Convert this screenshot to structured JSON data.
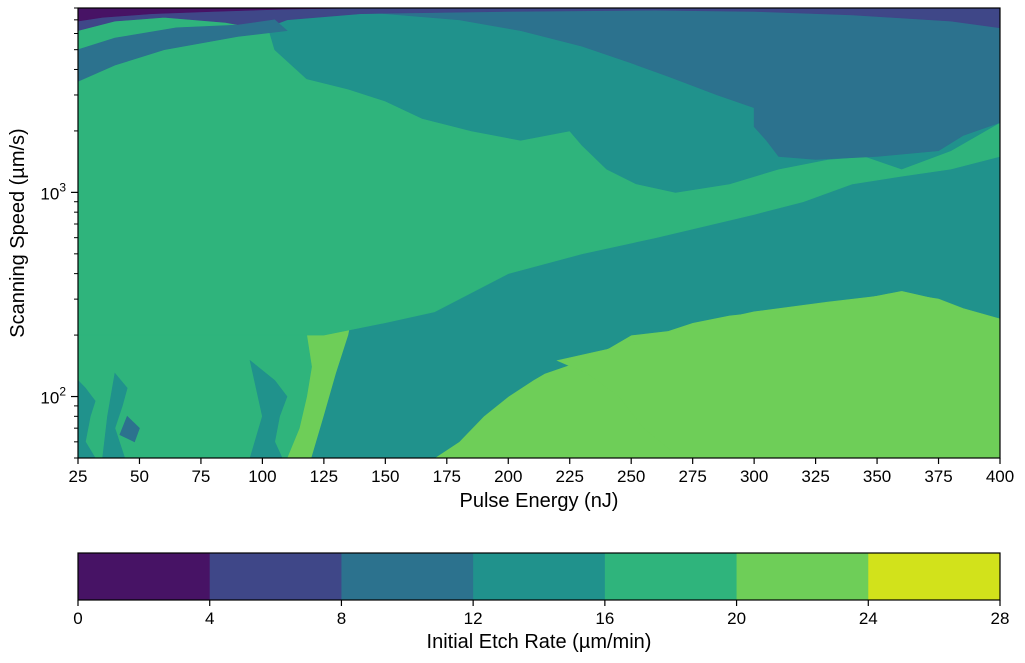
{
  "chart_data": {
    "type": "heatmap",
    "subtype": "filled-contour",
    "title": "",
    "xlabel": "Pulse Energy (nJ)",
    "ylabel": "Scanning Speed (µm/s)",
    "x_ticks": [
      "25",
      "50",
      "75",
      "100",
      "125",
      "150",
      "175",
      "200",
      "225",
      "250",
      "275",
      "300",
      "325",
      "350",
      "375",
      "400"
    ],
    "x_tick_values": [
      25,
      50,
      75,
      100,
      125,
      150,
      175,
      200,
      225,
      250,
      275,
      300,
      325,
      350,
      375,
      400
    ],
    "xlim": [
      25,
      400
    ],
    "y_scale": "log",
    "ylim": [
      50,
      8000
    ],
    "y_major_ticks": [
      {
        "value": 100,
        "base": "10",
        "exp": "2"
      },
      {
        "value": 1000,
        "base": "10",
        "exp": "3"
      }
    ],
    "colorbar": {
      "label": "Initial Etch Rate (µm/min)",
      "orientation": "horizontal",
      "levels": [
        0,
        4,
        8,
        12,
        16,
        20,
        24,
        28
      ],
      "tick_labels": [
        "0",
        "4",
        "8",
        "12",
        "16",
        "20",
        "24",
        "28"
      ],
      "colors": [
        "#471365",
        "#3f4788",
        "#2c728e",
        "#20928c",
        "#2fb47c",
        "#6ece58",
        "#d2e21b"
      ]
    },
    "regions": [
      {
        "bin": 5,
        "points": [
          [
            25,
            8000
          ],
          [
            400,
            8000
          ],
          [
            400,
            50
          ],
          [
            25,
            50
          ]
        ]
      },
      {
        "bin": 4,
        "points": [
          [
            25,
            2400
          ],
          [
            35,
            3000
          ],
          [
            45,
            3500
          ],
          [
            60,
            4200
          ],
          [
            70,
            3800
          ],
          [
            85,
            2800
          ],
          [
            92,
            2200
          ],
          [
            95,
            1500
          ],
          [
            100,
            1000
          ],
          [
            105,
            700
          ],
          [
            110,
            500
          ],
          [
            115,
            300
          ],
          [
            118,
            200
          ],
          [
            120,
            140
          ],
          [
            118,
            100
          ],
          [
            115,
            70
          ],
          [
            110,
            50
          ],
          [
            25,
            50
          ]
        ]
      },
      {
        "bin": 6,
        "points": [
          [
            25,
            1700
          ],
          [
            37,
            1500
          ],
          [
            48,
            1250
          ],
          [
            63,
            1100
          ],
          [
            75,
            900
          ],
          [
            78,
            700
          ],
          [
            77,
            600
          ],
          [
            80,
            520
          ],
          [
            78,
            390
          ],
          [
            70,
            380
          ],
          [
            60,
            370
          ],
          [
            50,
            320
          ],
          [
            40,
            280
          ],
          [
            32,
            250
          ],
          [
            25,
            220
          ]
        ]
      },
      {
        "bin": 3,
        "points": [
          [
            25,
            120
          ],
          [
            28,
            110
          ],
          [
            32,
            95
          ],
          [
            30,
            80
          ],
          [
            28,
            60
          ],
          [
            32,
            50
          ],
          [
            25,
            50
          ]
        ]
      },
      {
        "bin": 3,
        "points": [
          [
            40,
            130
          ],
          [
            45,
            110
          ],
          [
            43,
            90
          ],
          [
            40,
            70
          ],
          [
            44,
            50
          ],
          [
            35,
            50
          ],
          [
            37,
            80
          ]
        ]
      },
      {
        "bin": 3,
        "points": [
          [
            95,
            150
          ],
          [
            105,
            120
          ],
          [
            110,
            100
          ],
          [
            107,
            80
          ],
          [
            105,
            60
          ],
          [
            108,
            50
          ],
          [
            95,
            50
          ],
          [
            100,
            80
          ]
        ]
      },
      {
        "bin": 2,
        "points": [
          [
            45,
            80
          ],
          [
            50,
            70
          ],
          [
            48,
            60
          ],
          [
            42,
            65
          ]
        ]
      },
      {
        "bin": 3,
        "points": [
          [
            100,
            8000
          ],
          [
            400,
            8000
          ],
          [
            400,
            210
          ],
          [
            390,
            230
          ],
          [
            375,
            300
          ],
          [
            360,
            330
          ],
          [
            330,
            280
          ],
          [
            290,
            250
          ],
          [
            275,
            230
          ],
          [
            265,
            210
          ],
          [
            250,
            200
          ],
          [
            240,
            170
          ],
          [
            230,
            150
          ],
          [
            215,
            130
          ],
          [
            210,
            120
          ],
          [
            200,
            100
          ],
          [
            190,
            80
          ],
          [
            180,
            60
          ],
          [
            170,
            50
          ],
          [
            120,
            50
          ],
          [
            125,
            80
          ],
          [
            130,
            130
          ],
          [
            135,
            200
          ],
          [
            138,
            300
          ],
          [
            140,
            450
          ],
          [
            145,
            650
          ],
          [
            160,
            850
          ],
          [
            178,
            1000
          ],
          [
            183,
            1200
          ],
          [
            178,
            1500
          ],
          [
            170,
            1900
          ],
          [
            160,
            2400
          ],
          [
            145,
            2600
          ],
          [
            135,
            3200
          ],
          [
            115,
            3600
          ],
          [
            105,
            4400
          ]
        ]
      },
      {
        "bin": 5,
        "points": [
          [
            155,
            2200
          ],
          [
            160,
            3000
          ],
          [
            175,
            4000
          ],
          [
            185,
            4300
          ],
          [
            190,
            3500
          ],
          [
            188,
            2500
          ],
          [
            182,
            2000
          ],
          [
            170,
            1900
          ]
        ]
      },
      {
        "bin": 5,
        "points": [
          [
            280,
            1000
          ],
          [
            295,
            1200
          ],
          [
            305,
            1400
          ],
          [
            310,
            1600
          ],
          [
            300,
            1200
          ],
          [
            292,
            1000
          ],
          [
            285,
            960
          ]
        ]
      },
      {
        "bin": 5,
        "points": [
          [
            220,
            150
          ],
          [
            240,
            170
          ],
          [
            260,
            200
          ],
          [
            280,
            230
          ],
          [
            300,
            260
          ],
          [
            330,
            290
          ],
          [
            360,
            320
          ],
          [
            375,
            300
          ],
          [
            385,
            270
          ],
          [
            400,
            240
          ],
          [
            400,
            50
          ],
          [
            270,
            50
          ],
          [
            255,
            70
          ],
          [
            245,
            100
          ],
          [
            232,
            130
          ]
        ]
      },
      {
        "bin": 4,
        "points": [
          [
            420,
            9000
          ],
          [
            -20,
            9000
          ],
          [
            -20,
            200
          ],
          [
            125,
            200
          ],
          [
            150,
            230
          ],
          [
            170,
            260
          ],
          [
            200,
            400
          ],
          [
            230,
            500
          ],
          [
            260,
            600
          ],
          [
            300,
            780
          ],
          [
            320,
            900
          ],
          [
            340,
            1100
          ],
          [
            360,
            1200
          ],
          [
            380,
            1300
          ],
          [
            400,
            1500
          ],
          [
            420,
            1500
          ]
        ]
      },
      {
        "bin": 3,
        "points": [
          [
            225,
            2000
          ],
          [
            230,
            1700
          ],
          [
            240,
            1300
          ],
          [
            252,
            1100
          ],
          [
            268,
            1000
          ],
          [
            290,
            1100
          ],
          [
            310,
            1300
          ],
          [
            330,
            1450
          ],
          [
            345,
            1500
          ],
          [
            360,
            1300
          ],
          [
            380,
            1600
          ],
          [
            400,
            2200
          ],
          [
            400,
            8000
          ],
          [
            100,
            8000
          ],
          [
            105,
            5000
          ],
          [
            118,
            3600
          ],
          [
            135,
            3200
          ],
          [
            150,
            2800
          ],
          [
            165,
            2300
          ],
          [
            185,
            2000
          ],
          [
            205,
            1800
          ]
        ]
      },
      {
        "bin": 2,
        "points": [
          [
            125,
            8000
          ],
          [
            400,
            8000
          ],
          [
            400,
            2200
          ],
          [
            385,
            1900
          ],
          [
            375,
            1600
          ],
          [
            350,
            1500
          ],
          [
            325,
            1450
          ],
          [
            310,
            1500
          ],
          [
            305,
            1800
          ],
          [
            300,
            2100
          ],
          [
            300,
            2600
          ],
          [
            285,
            3000
          ],
          [
            265,
            3700
          ],
          [
            250,
            4300
          ],
          [
            230,
            5200
          ],
          [
            205,
            6200
          ],
          [
            180,
            7000
          ],
          [
            150,
            7500
          ]
        ]
      },
      {
        "bin": 1,
        "points": [
          [
            25,
            8000
          ],
          [
            400,
            8000
          ],
          [
            400,
            6400
          ],
          [
            380,
            6900
          ],
          [
            340,
            7400
          ],
          [
            300,
            7700
          ],
          [
            260,
            7800
          ],
          [
            200,
            7700
          ],
          [
            140,
            7500
          ],
          [
            110,
            7000
          ],
          [
            100,
            6300
          ],
          [
            85,
            6800
          ],
          [
            60,
            7200
          ],
          [
            40,
            6900
          ],
          [
            25,
            6200
          ]
        ]
      },
      {
        "bin": 0,
        "points": [
          [
            25,
            8000
          ],
          [
            140,
            8000
          ],
          [
            110,
            7900
          ],
          [
            80,
            7700
          ],
          [
            55,
            7500
          ],
          [
            35,
            7200
          ],
          [
            25,
            6900
          ]
        ]
      },
      {
        "bin": 2,
        "points": [
          [
            25,
            3500
          ],
          [
            40,
            4200
          ],
          [
            60,
            5000
          ],
          [
            90,
            5800
          ],
          [
            110,
            6200
          ],
          [
            105,
            7000
          ],
          [
            90,
            6600
          ],
          [
            65,
            6400
          ],
          [
            40,
            5700
          ],
          [
            25,
            5000
          ]
        ]
      }
    ]
  }
}
